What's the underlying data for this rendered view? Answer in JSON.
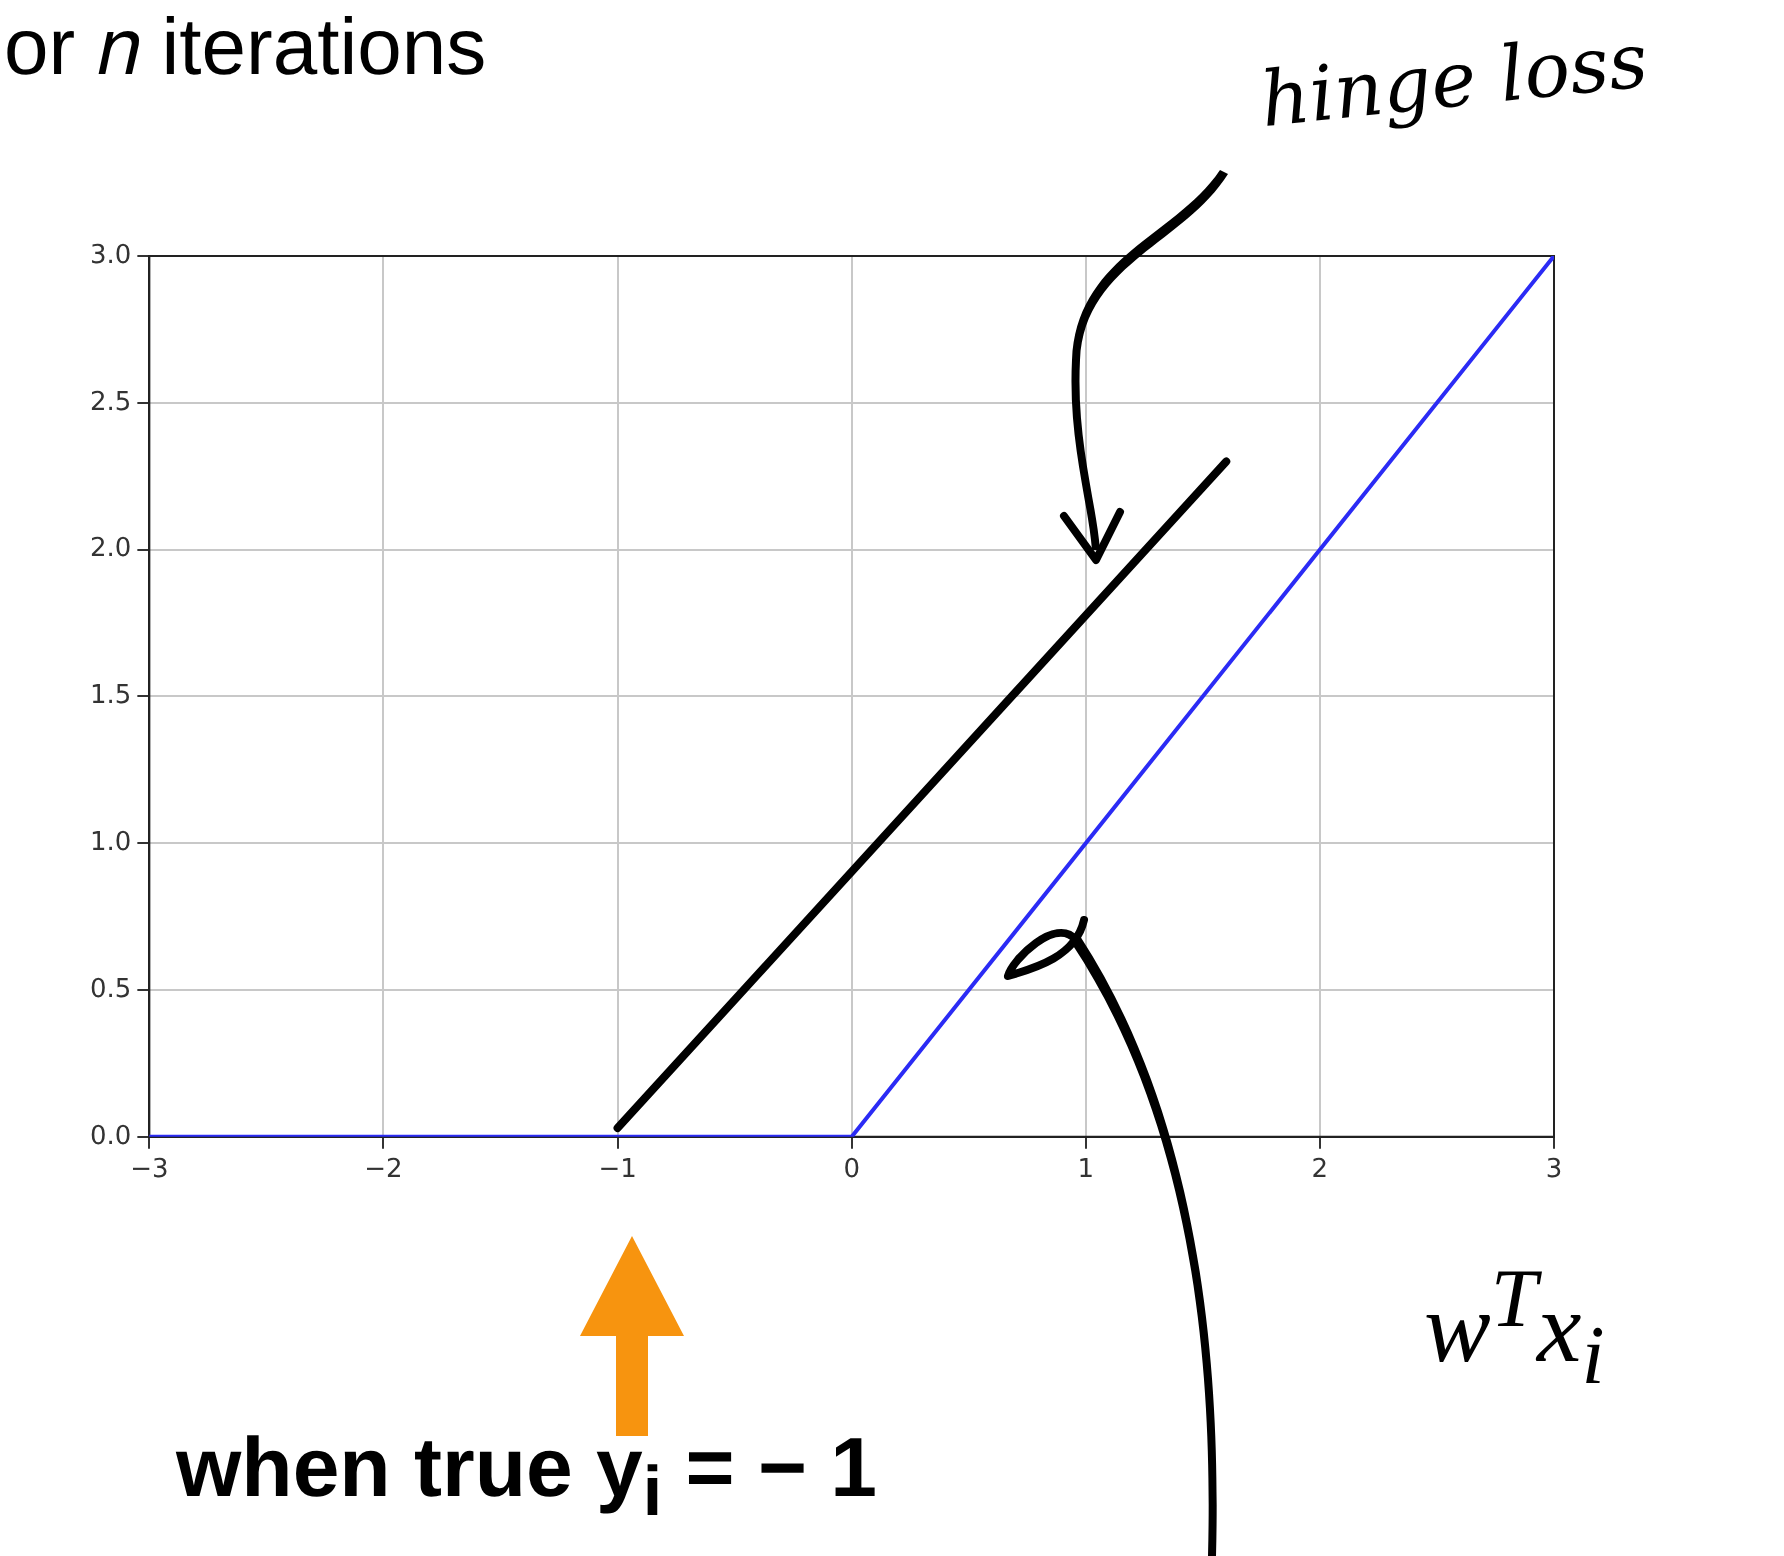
{
  "chart_data": {
    "type": "line",
    "title": "or 𝑛 iterations",
    "xlabel": "w$^{T}$x$_{i}$",
    "annotations": [
      "hinge loss",
      "when true y$_{i}$ = − 1"
    ],
    "series": [
      {
        "color": "#2b2bf5",
        "x": [
          -3,
          0,
          3
        ],
        "values": [
          0,
          0,
          3
        ]
      },
      {
        "color": "#000000",
        "x": [
          -1,
          1.6
        ],
        "values": [
          0.03,
          2.3
        ]
      }
    ],
    "xlim": [
      -3,
      3
    ],
    "ylim": [
      0,
      3
    ],
    "xticks": [
      {
        "value": -3,
        "label": "−3"
      },
      {
        "value": -2,
        "label": "−2"
      },
      {
        "value": -1,
        "label": "−1"
      },
      0,
      1,
      2,
      3
    ],
    "yticks": [
      {
        "value": 0,
        "label": "0.0"
      },
      {
        "value": 0.5,
        "label": "0.5"
      },
      {
        "value": 1,
        "label": "1.0"
      },
      {
        "value": 1.5,
        "label": "1.5"
      },
      {
        "value": 2,
        "label": "2.0"
      },
      {
        "value": 2.5,
        "label": "2.5"
      },
      {
        "value": 3,
        "label": "3.0"
      }
    ],
    "grid": true,
    "legend": false,
    "marker": "none",
    "line_style": "solid"
  }
}
